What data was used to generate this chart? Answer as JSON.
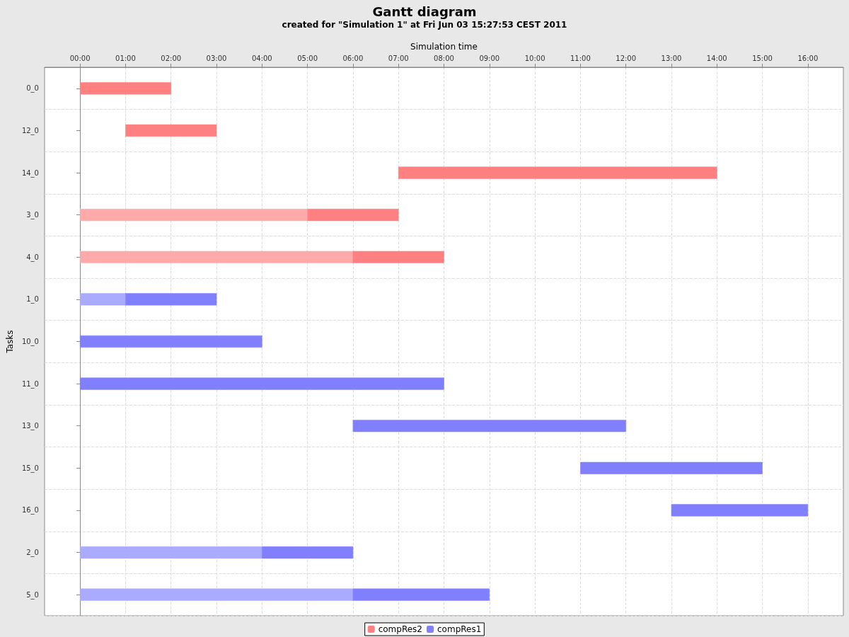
{
  "chart_data": {
    "type": "bar",
    "orientation": "horizontal",
    "title": "Gantt diagram",
    "subtitle": "created for \"Simulation 1\" at Fri Jun 03 15:27:53 CEST 2011",
    "xlabel": "Simulation time",
    "ylabel": "Tasks",
    "categories": [
      "0_0",
      "12_0",
      "14_0",
      "3_0",
      "4_0",
      "1_0",
      "10_0",
      "11_0",
      "13_0",
      "15_0",
      "16_0",
      "2_0",
      "5_0"
    ],
    "series": [
      {
        "color": "#ffaaaa",
        "base": [
          null,
          null,
          null,
          0,
          0,
          null,
          null,
          null,
          null,
          null,
          null,
          null,
          null
        ],
        "values": [
          null,
          null,
          null,
          5,
          6,
          null,
          null,
          null,
          null,
          null,
          null,
          null,
          null
        ]
      },
      {
        "name": "compRes2",
        "color": "#ff8080",
        "base": [
          0,
          1,
          7,
          5,
          6,
          null,
          null,
          null,
          null,
          null,
          null,
          null,
          null
        ],
        "values": [
          2,
          2,
          7,
          2,
          2,
          null,
          null,
          null,
          null,
          null,
          null,
          null,
          null
        ]
      },
      {
        "color": "#aaaaff",
        "base": [
          null,
          null,
          null,
          null,
          null,
          0,
          null,
          null,
          null,
          null,
          null,
          0,
          0
        ],
        "values": [
          null,
          null,
          null,
          null,
          null,
          1,
          null,
          null,
          null,
          null,
          null,
          4,
          6
        ]
      },
      {
        "name": "compRes1",
        "color": "#8080ff",
        "base": [
          null,
          null,
          null,
          null,
          null,
          1,
          0,
          0,
          6,
          11,
          13,
          4,
          6
        ],
        "values": [
          null,
          null,
          null,
          null,
          null,
          2,
          4,
          8,
          6,
          4,
          3,
          2,
          3
        ]
      }
    ],
    "xlim": [
      -0.78,
      16.78
    ],
    "xticks": [
      {
        "value": 0,
        "label": "00:00"
      },
      {
        "value": 1,
        "label": "01:00"
      },
      {
        "value": 2,
        "label": "02:00"
      },
      {
        "value": 3,
        "label": "03:00"
      },
      {
        "value": 4,
        "label": "04:00"
      },
      {
        "value": 5,
        "label": "05:00"
      },
      {
        "value": 6,
        "label": "06:00"
      },
      {
        "value": 7,
        "label": "07:00"
      },
      {
        "value": 8,
        "label": "08:00"
      },
      {
        "value": 9,
        "label": "09:00"
      },
      {
        "value": 10,
        "label": "10:00"
      },
      {
        "value": 11,
        "label": "11:00"
      },
      {
        "value": 12,
        "label": "12:00"
      },
      {
        "value": 13,
        "label": "13:00"
      },
      {
        "value": 14,
        "label": "14:00"
      },
      {
        "value": 15,
        "label": "15:00"
      },
      {
        "value": 16,
        "label": "16:00"
      }
    ],
    "grid": true,
    "legend": "bottom"
  }
}
